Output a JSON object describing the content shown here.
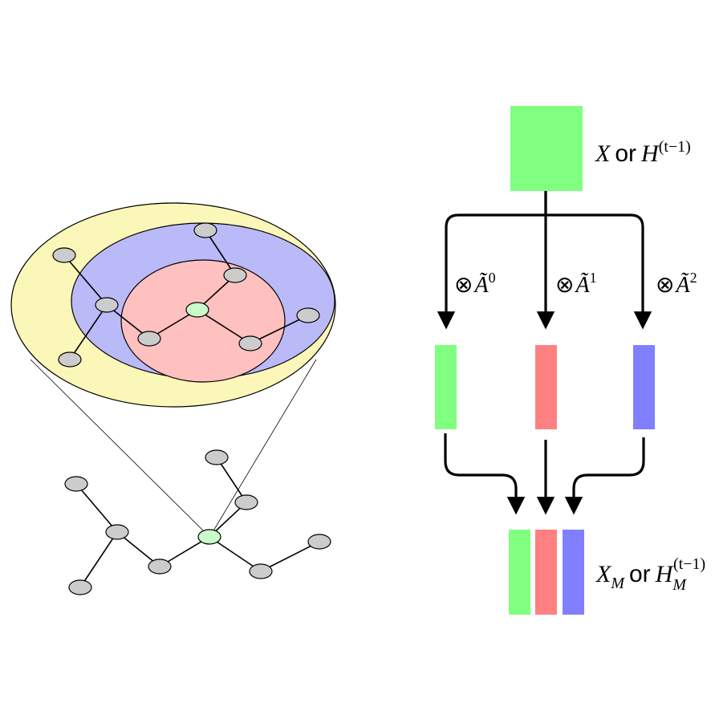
{
  "colors": {
    "green": "#80ff80",
    "red": "#ff8080",
    "blue": "#8080ff",
    "yellow_ring": "#fbf7b8",
    "blue_ring": "#babaf8",
    "red_disk": "#ffc0c0",
    "node_gray": "#cccccc",
    "center_node": "#c8fcc8",
    "line": "#000000"
  },
  "labels": {
    "input": {
      "main": "X",
      "or": "or",
      "var": "H",
      "sup": "(t−1)"
    },
    "ops": [
      {
        "symbol": "⊗",
        "var": "Ã",
        "sup": "0"
      },
      {
        "symbol": "⊗",
        "var": "Ã",
        "sup": "1"
      },
      {
        "symbol": "⊗",
        "var": "Ã",
        "sup": "2"
      }
    ],
    "output": {
      "main": "X",
      "main_sub": "M",
      "or": "or",
      "var": "H",
      "sub": "M",
      "sup": "(t−1)"
    }
  }
}
